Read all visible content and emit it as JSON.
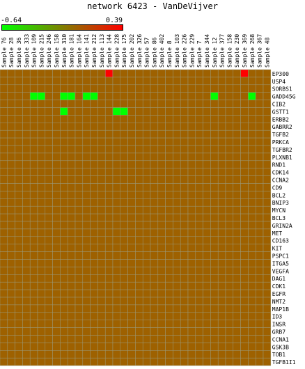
{
  "chart_data": {
    "type": "heatmap",
    "title": "network 6423 - VanDeVijver",
    "scale": {
      "min_label": "-0.64",
      "max_label": "0.39",
      "min": -0.64,
      "max": 0.39,
      "low_color": "#00ff00",
      "high_color": "#ff0000"
    },
    "columns": [
      "Sample 76",
      "Sample 28",
      "Sample 36",
      "Sample 333",
      "Sample 109",
      "Sample 215",
      "Sample 246",
      "Sample 158",
      "Sample 310",
      "Sample 181",
      "Sample 164",
      "Sample 141",
      "Sample 212",
      "Sample 113",
      "Sample 144",
      "Sample 228",
      "Sample 175",
      "Sample 202",
      "Sample 326",
      "Sample 57",
      "Sample 86",
      "Sample 402",
      "Sample 8",
      "Sample 103",
      "Sample 226",
      "Sample 229",
      "Sample 7",
      "Sample 344",
      "Sample 12",
      "Sample 377",
      "Sample 158",
      "Sample 230",
      "Sample 369",
      "Sample 268",
      "Sample 367",
      "Sample 48"
    ],
    "rows": [
      "EP300",
      "USP4",
      "SORBS1",
      "GADD45G",
      "CIB2",
      "GSTT1",
      "ERBB2",
      "GABRR2",
      "TGFB2",
      "PRKCA",
      "TGFBR2",
      "PLXNB1",
      "RND1",
      "CDK14",
      "CCNA2",
      "CD9",
      "BCL2",
      "BNIP3",
      "MYCN",
      "BCL3",
      "GRIN2A",
      "MET",
      "CD163",
      "KIT",
      "PSPC1",
      "ITGA5",
      "VEGFA",
      "DAG1",
      "CDK1",
      "EGFR",
      "NMT2",
      "MAP1B",
      "ID3",
      "INSR",
      "GRB7",
      "CCNA1",
      "GSK3B",
      "TOB1",
      "TGFB1I1"
    ],
    "values": [
      [
        0,
        0,
        0,
        0,
        0,
        0,
        0,
        0,
        0,
        0,
        0,
        0,
        0,
        0,
        0.39,
        0,
        0,
        0,
        0,
        0,
        0,
        0,
        0,
        0,
        0,
        0,
        0,
        0,
        0,
        0,
        0,
        0,
        0.39,
        0,
        0,
        0
      ],
      [
        0,
        0,
        0,
        0,
        0,
        0,
        0,
        0,
        0,
        0,
        0,
        0,
        0,
        0,
        0,
        0,
        0,
        0,
        0,
        0,
        0,
        0,
        0,
        0,
        0,
        0,
        0,
        0,
        0,
        0,
        0,
        0,
        0,
        0,
        0,
        0
      ],
      [
        0,
        0,
        0,
        0,
        0,
        0,
        0,
        0,
        0,
        0,
        0,
        0,
        0,
        0,
        0,
        0,
        0,
        0,
        0,
        0,
        0,
        0,
        0,
        0,
        0,
        0,
        0,
        0,
        0,
        0,
        0,
        0,
        0,
        0,
        0,
        0
      ],
      [
        0,
        0,
        0,
        0,
        -0.64,
        -0.64,
        0,
        0,
        -0.64,
        -0.64,
        0,
        -0.64,
        -0.64,
        0,
        0,
        0,
        0,
        0,
        0,
        0,
        0,
        0,
        0,
        0,
        0,
        0,
        0,
        0,
        -0.64,
        0,
        0,
        0,
        0,
        -0.64,
        0,
        0
      ],
      [
        0,
        0,
        0,
        0,
        0,
        0,
        0,
        0,
        0,
        0,
        0,
        0,
        0,
        0,
        0,
        0,
        0,
        0,
        0,
        0,
        0,
        0,
        0,
        0,
        0,
        0,
        0,
        0,
        0,
        0,
        0,
        0,
        0,
        0,
        0,
        0
      ],
      [
        0,
        0,
        0,
        0,
        0,
        0,
        0,
        0,
        -0.64,
        0,
        0,
        0,
        0,
        0,
        0,
        -0.64,
        -0.64,
        0,
        0,
        0,
        0,
        0,
        0,
        0,
        0,
        0,
        0,
        0,
        0,
        0,
        0,
        0,
        0,
        0,
        0,
        0
      ],
      [
        0,
        0,
        0,
        0,
        0,
        0,
        0,
        0,
        0,
        0,
        0,
        0,
        0,
        0,
        0,
        0,
        0,
        0,
        0,
        0,
        0,
        0,
        0,
        0,
        0,
        0,
        0,
        0,
        0,
        0,
        0,
        0,
        0,
        0,
        0,
        0
      ],
      [
        0,
        0,
        0,
        0,
        0,
        0,
        0,
        0,
        0,
        0,
        0,
        0,
        0,
        0,
        0,
        0,
        0,
        0,
        0,
        0,
        0,
        0,
        0,
        0,
        0,
        0,
        0,
        0,
        0,
        0,
        0,
        0,
        0,
        0,
        0,
        0
      ],
      [
        0,
        0,
        0,
        0,
        0,
        0,
        0,
        0,
        0,
        0,
        0,
        0,
        0,
        0,
        0,
        0,
        0,
        0,
        0,
        0,
        0,
        0,
        0,
        0,
        0,
        0,
        0,
        0,
        0,
        0,
        0,
        0,
        0,
        0,
        0,
        0
      ],
      [
        0,
        0,
        0,
        0,
        0,
        0,
        0,
        0,
        0,
        0,
        0,
        0,
        0,
        0,
        0,
        0,
        0,
        0,
        0,
        0,
        0,
        0,
        0,
        0,
        0,
        0,
        0,
        0,
        0,
        0,
        0,
        0,
        0,
        0,
        0,
        0
      ],
      [
        0,
        0,
        0,
        0,
        0,
        0,
        0,
        0,
        0,
        0,
        0,
        0,
        0,
        0,
        0,
        0,
        0,
        0,
        0,
        0,
        0,
        0,
        0,
        0,
        0,
        0,
        0,
        0,
        0,
        0,
        0,
        0,
        0,
        0,
        0,
        0
      ],
      [
        0,
        0,
        0,
        0,
        0,
        0,
        0,
        0,
        0,
        0,
        0,
        0,
        0,
        0,
        0,
        0,
        0,
        0,
        0,
        0,
        0,
        0,
        0,
        0,
        0,
        0,
        0,
        0,
        0,
        0,
        0,
        0,
        0,
        0,
        0,
        0
      ],
      [
        0,
        0,
        0,
        0,
        0,
        0,
        0,
        0,
        0,
        0,
        0,
        0,
        0,
        0,
        0,
        0,
        0,
        0,
        0,
        0,
        0,
        0,
        0,
        0,
        0,
        0,
        0,
        0,
        0,
        0,
        0,
        0,
        0,
        0,
        0,
        0
      ],
      [
        0,
        0,
        0,
        0,
        0,
        0,
        0,
        0,
        0,
        0,
        0,
        0,
        0,
        0,
        0,
        0,
        0,
        0,
        0,
        0,
        0,
        0,
        0,
        0,
        0,
        0,
        0,
        0,
        0,
        0,
        0,
        0,
        0,
        0,
        0,
        0
      ],
      [
        0,
        0,
        0,
        0,
        0,
        0,
        0,
        0,
        0,
        0,
        0,
        0,
        0,
        0,
        0,
        0,
        0,
        0,
        0,
        0,
        0,
        0,
        0,
        0,
        0,
        0,
        0,
        0,
        0,
        0,
        0,
        0,
        0,
        0,
        0,
        0
      ],
      [
        0,
        0,
        0,
        0,
        0,
        0,
        0,
        0,
        0,
        0,
        0,
        0,
        0,
        0,
        0,
        0,
        0,
        0,
        0,
        0,
        0,
        0,
        0,
        0,
        0,
        0,
        0,
        0,
        0,
        0,
        0,
        0,
        0,
        0,
        0,
        0
      ],
      [
        0,
        0,
        0,
        0,
        0,
        0,
        0,
        0,
        0,
        0,
        0,
        0,
        0,
        0,
        0,
        0,
        0,
        0,
        0,
        0,
        0,
        0,
        0,
        0,
        0,
        0,
        0,
        0,
        0,
        0,
        0,
        0,
        0,
        0,
        0,
        0
      ],
      [
        0,
        0,
        0,
        0,
        0,
        0,
        0,
        0,
        0,
        0,
        0,
        0,
        0,
        0,
        0,
        0,
        0,
        0,
        0,
        0,
        0,
        0,
        0,
        0,
        0,
        0,
        0,
        0,
        0,
        0,
        0,
        0,
        0,
        0,
        0,
        0
      ],
      [
        0,
        0,
        0,
        0,
        0,
        0,
        0,
        0,
        0,
        0,
        0,
        0,
        0,
        0,
        0,
        0,
        0,
        0,
        0,
        0,
        0,
        0,
        0,
        0,
        0,
        0,
        0,
        0,
        0,
        0,
        0,
        0,
        0,
        0,
        0,
        0
      ],
      [
        0,
        0,
        0,
        0,
        0,
        0,
        0,
        0,
        0,
        0,
        0,
        0,
        0,
        0,
        0,
        0,
        0,
        0,
        0,
        0,
        0,
        0,
        0,
        0,
        0,
        0,
        0,
        0,
        0,
        0,
        0,
        0,
        0,
        0,
        0,
        0
      ],
      [
        0,
        0,
        0,
        0,
        0,
        0,
        0,
        0,
        0,
        0,
        0,
        0,
        0,
        0,
        0,
        0,
        0,
        0,
        0,
        0,
        0,
        0,
        0,
        0,
        0,
        0,
        0,
        0,
        0,
        0,
        0,
        0,
        0,
        0,
        0,
        0
      ],
      [
        0,
        0,
        0,
        0,
        0,
        0,
        0,
        0,
        0,
        0,
        0,
        0,
        0,
        0,
        0,
        0,
        0,
        0,
        0,
        0,
        0,
        0,
        0,
        0,
        0,
        0,
        0,
        0,
        0,
        0,
        0,
        0,
        0,
        0,
        0,
        0
      ],
      [
        0,
        0,
        0,
        0,
        0,
        0,
        0,
        0,
        0,
        0,
        0,
        0,
        0,
        0,
        0,
        0,
        0,
        0,
        0,
        0,
        0,
        0,
        0,
        0,
        0,
        0,
        0,
        0,
        0,
        0,
        0,
        0,
        0,
        0,
        0,
        0
      ],
      [
        0,
        0,
        0,
        0,
        0,
        0,
        0,
        0,
        0,
        0,
        0,
        0,
        0,
        0,
        0,
        0,
        0,
        0,
        0,
        0,
        0,
        0,
        0,
        0,
        0,
        0,
        0,
        0,
        0,
        0,
        0,
        0,
        0,
        0,
        0,
        0
      ],
      [
        0,
        0,
        0,
        0,
        0,
        0,
        0,
        0,
        0,
        0,
        0,
        0,
        0,
        0,
        0,
        0,
        0,
        0,
        0,
        0,
        0,
        0,
        0,
        0,
        0,
        0,
        0,
        0,
        0,
        0,
        0,
        0,
        0,
        0,
        0,
        0
      ],
      [
        0,
        0,
        0,
        0,
        0,
        0,
        0,
        0,
        0,
        0,
        0,
        0,
        0,
        0,
        0,
        0,
        0,
        0,
        0,
        0,
        0,
        0,
        0,
        0,
        0,
        0,
        0,
        0,
        0,
        0,
        0,
        0,
        0,
        0,
        0,
        0
      ],
      [
        0,
        0,
        0,
        0,
        0,
        0,
        0,
        0,
        0,
        0,
        0,
        0,
        0,
        0,
        0,
        0,
        0,
        0,
        0,
        0,
        0,
        0,
        0,
        0,
        0,
        0,
        0,
        0,
        0,
        0,
        0,
        0,
        0,
        0,
        0,
        0
      ],
      [
        0,
        0,
        0,
        0,
        0,
        0,
        0,
        0,
        0,
        0,
        0,
        0,
        0,
        0,
        0,
        0,
        0,
        0,
        0,
        0,
        0,
        0,
        0,
        0,
        0,
        0,
        0,
        0,
        0,
        0,
        0,
        0,
        0,
        0,
        0,
        0
      ],
      [
        0,
        0,
        0,
        0,
        0,
        0,
        0,
        0,
        0,
        0,
        0,
        0,
        0,
        0,
        0,
        0,
        0,
        0,
        0,
        0,
        0,
        0,
        0,
        0,
        0,
        0,
        0,
        0,
        0,
        0,
        0,
        0,
        0,
        0,
        0,
        0
      ],
      [
        0,
        0,
        0,
        0,
        0,
        0,
        0,
        0,
        0,
        0,
        0,
        0,
        0,
        0,
        0,
        0,
        0,
        0,
        0,
        0,
        0,
        0,
        0,
        0,
        0,
        0,
        0,
        0,
        0,
        0,
        0,
        0,
        0,
        0,
        0,
        0
      ],
      [
        0,
        0,
        0,
        0,
        0,
        0,
        0,
        0,
        0,
        0,
        0,
        0,
        0,
        0,
        0,
        0,
        0,
        0,
        0,
        0,
        0,
        0,
        0,
        0,
        0,
        0,
        0,
        0,
        0,
        0,
        0,
        0,
        0,
        0,
        0,
        0
      ],
      [
        0,
        0,
        0,
        0,
        0,
        0,
        0,
        0,
        0,
        0,
        0,
        0,
        0,
        0,
        0,
        0,
        0,
        0,
        0,
        0,
        0,
        0,
        0,
        0,
        0,
        0,
        0,
        0,
        0,
        0,
        0,
        0,
        0,
        0,
        0,
        0
      ],
      [
        0,
        0,
        0,
        0,
        0,
        0,
        0,
        0,
        0,
        0,
        0,
        0,
        0,
        0,
        0,
        0,
        0,
        0,
        0,
        0,
        0,
        0,
        0,
        0,
        0,
        0,
        0,
        0,
        0,
        0,
        0,
        0,
        0,
        0,
        0,
        0
      ],
      [
        0,
        0,
        0,
        0,
        0,
        0,
        0,
        0,
        0,
        0,
        0,
        0,
        0,
        0,
        0,
        0,
        0,
        0,
        0,
        0,
        0,
        0,
        0,
        0,
        0,
        0,
        0,
        0,
        0,
        0,
        0,
        0,
        0,
        0,
        0,
        0
      ],
      [
        0,
        0,
        0,
        0,
        0,
        0,
        0,
        0,
        0,
        0,
        0,
        0,
        0,
        0,
        0,
        0,
        0,
        0,
        0,
        0,
        0,
        0,
        0,
        0,
        0,
        0,
        0,
        0,
        0,
        0,
        0,
        0,
        0,
        0,
        0,
        0
      ],
      [
        0,
        0,
        0,
        0,
        0,
        0,
        0,
        0,
        0,
        0,
        0,
        0,
        0,
        0,
        0,
        0,
        0,
        0,
        0,
        0,
        0,
        0,
        0,
        0,
        0,
        0,
        0,
        0,
        0,
        0,
        0,
        0,
        0,
        0,
        0,
        0
      ],
      [
        0,
        0,
        0,
        0,
        0,
        0,
        0,
        0,
        0,
        0,
        0,
        0,
        0,
        0,
        0,
        0,
        0,
        0,
        0,
        0,
        0,
        0,
        0,
        0,
        0,
        0,
        0,
        0,
        0,
        0,
        0,
        0,
        0,
        0,
        0,
        0
      ],
      [
        0,
        0,
        0,
        0,
        0,
        0,
        0,
        0,
        0,
        0,
        0,
        0,
        0,
        0,
        0,
        0,
        0,
        0,
        0,
        0,
        0,
        0,
        0,
        0,
        0,
        0,
        0,
        0,
        0,
        0,
        0,
        0,
        0,
        0,
        0,
        0
      ],
      [
        0,
        0,
        0,
        0,
        0,
        0,
        0,
        0,
        0,
        0,
        0,
        0,
        0,
        0,
        0,
        0,
        0,
        0,
        0,
        0,
        0,
        0,
        0,
        0,
        0,
        0,
        0,
        0,
        0,
        0,
        0,
        0,
        0,
        0,
        0,
        0
      ]
    ]
  }
}
